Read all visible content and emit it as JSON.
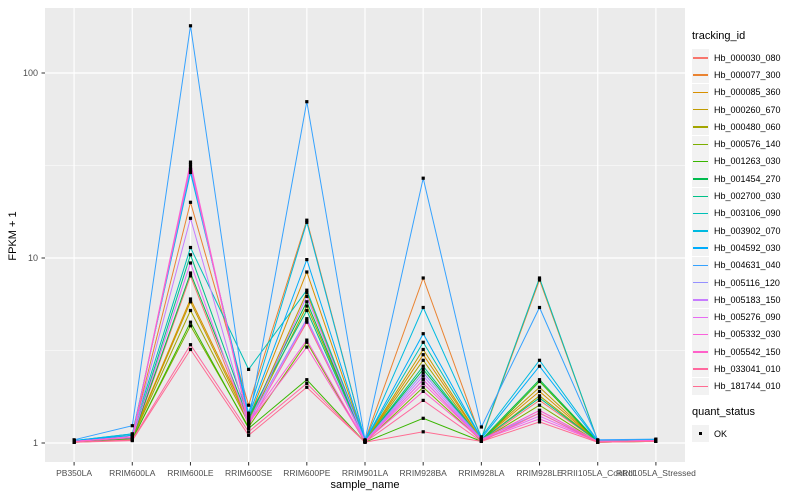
{
  "figure": {
    "background": "#FFFFFF",
    "panel_background": "#EBEBEB",
    "gridline_color": "#FFFFFF",
    "tick_color": "#333333",
    "tick_label_color": "#4D4D4D",
    "point_color": "#000000"
  },
  "chart_data": {
    "type": "line",
    "title": "",
    "xlabel": "sample_name",
    "ylabel": "FPKM + 1",
    "y_scale": "log10",
    "y_ticks": [
      1,
      10,
      100
    ],
    "ylim": [
      1,
      224
    ],
    "grid": true,
    "legend_position": "right",
    "point_shape": "filled-square",
    "categories": [
      "PB350LA",
      "RRIM600LA",
      "RRIM600LE",
      "RRIM600SE",
      "RRIM600PE",
      "RRIM901LA",
      "RRIM928BA",
      "RRIM928LA",
      "RRIM928LE",
      "RRII105LA_Control",
      "RRII105LA_Stressed"
    ],
    "series": [
      {
        "name": "Hb_000030_080",
        "color": "#F8766D",
        "values": [
          1.02,
          1.05,
          8.0,
          1.25,
          4.5,
          1.02,
          2.2,
          1.03,
          1.7,
          1.02,
          1.03
        ]
      },
      {
        "name": "Hb_000077_300",
        "color": "#EA8331",
        "values": [
          1.03,
          1.1,
          20,
          1.6,
          16,
          1.03,
          7.8,
          1.05,
          7.6,
          1.03,
          1.04
        ]
      },
      {
        "name": "Hb_000085_360",
        "color": "#D89000",
        "values": [
          1.02,
          1.08,
          6.0,
          1.35,
          8.4,
          1.02,
          3.0,
          1.04,
          1.9,
          1.02,
          1.03
        ]
      },
      {
        "name": "Hb_000260_670",
        "color": "#C09B00",
        "values": [
          1.02,
          1.07,
          5.8,
          1.3,
          6.5,
          1.02,
          3.2,
          1.04,
          2.0,
          1.02,
          1.02
        ]
      },
      {
        "name": "Hb_000480_060",
        "color": "#A3A500",
        "values": [
          1.01,
          1.06,
          5.2,
          1.28,
          5.5,
          1.02,
          2.8,
          1.03,
          1.8,
          1.02,
          1.02
        ]
      },
      {
        "name": "Hb_000576_140",
        "color": "#7CAE00",
        "values": [
          1.01,
          1.05,
          4.3,
          1.22,
          3.5,
          1.01,
          2.0,
          1.03,
          1.6,
          1.01,
          1.02
        ]
      },
      {
        "name": "Hb_001263_030",
        "color": "#39B600",
        "values": [
          1.01,
          1.04,
          4.5,
          1.2,
          2.2,
          1.01,
          1.36,
          1.02,
          2.15,
          1.01,
          1.02
        ]
      },
      {
        "name": "Hb_001454_270",
        "color": "#00BB4E",
        "values": [
          1.02,
          1.06,
          8.3,
          1.35,
          5.8,
          1.02,
          2.5,
          1.04,
          2.2,
          1.02,
          1.03
        ]
      },
      {
        "name": "Hb_002700_030",
        "color": "#00C087",
        "values": [
          1.02,
          1.07,
          10.4,
          1.4,
          5.2,
          1.02,
          2.6,
          1.04,
          1.75,
          1.02,
          1.03
        ]
      },
      {
        "name": "Hb_003106_090",
        "color": "#00C0B8",
        "values": [
          1.03,
          1.12,
          11.4,
          2.5,
          6.7,
          1.03,
          3.5,
          1.06,
          7.8,
          1.03,
          1.04
        ]
      },
      {
        "name": "Hb_003902_070",
        "color": "#00BAE0",
        "values": [
          1.03,
          1.12,
          29,
          1.45,
          15.6,
          1.03,
          5.4,
          1.08,
          2.8,
          1.03,
          1.04
        ]
      },
      {
        "name": "Hb_004592_030",
        "color": "#00ACFC",
        "values": [
          1.03,
          1.1,
          30,
          1.4,
          9.8,
          1.03,
          3.9,
          1.06,
          2.6,
          1.02,
          1.03
        ]
      },
      {
        "name": "Hb_004631_040",
        "color": "#35A2FF",
        "values": [
          1.04,
          1.24,
          180,
          1.3,
          70,
          1.04,
          27,
          1.22,
          5.4,
          1.04,
          1.05
        ]
      },
      {
        "name": "Hb_005116_120",
        "color": "#9590FF",
        "values": [
          1.02,
          1.08,
          31,
          1.3,
          4.7,
          1.02,
          2.4,
          1.05,
          1.45,
          1.02,
          1.03
        ]
      },
      {
        "name": "Hb_005183_150",
        "color": "#C77CFF",
        "values": [
          1.02,
          1.08,
          16.4,
          1.28,
          6.2,
          1.02,
          2.3,
          1.04,
          1.5,
          1.02,
          1.03
        ]
      },
      {
        "name": "Hb_005276_090",
        "color": "#E76BF3",
        "values": [
          1.02,
          1.07,
          9.4,
          1.25,
          4.6,
          1.02,
          2.2,
          1.04,
          1.4,
          1.02,
          1.03
        ]
      },
      {
        "name": "Hb_005332_030",
        "color": "#FA62DB",
        "values": [
          1.02,
          1.08,
          33,
          1.3,
          3.6,
          1.02,
          2.1,
          1.04,
          1.35,
          1.02,
          1.03
        ]
      },
      {
        "name": "Hb_005542_150",
        "color": "#FF61C9",
        "values": [
          1.02,
          1.07,
          32,
          1.28,
          3.3,
          1.02,
          1.9,
          1.04,
          1.5,
          1.02,
          1.03
        ]
      },
      {
        "name": "Hb_033041_010",
        "color": "#FF689E",
        "values": [
          1.01,
          1.04,
          3.4,
          1.15,
          2.1,
          1.01,
          1.7,
          1.02,
          1.45,
          1.01,
          1.02
        ]
      },
      {
        "name": "Hb_181744_010",
        "color": "#FF6C92",
        "values": [
          1.01,
          1.03,
          3.2,
          1.1,
          2.0,
          1.01,
          1.15,
          1.02,
          1.3,
          1.01,
          1.02
        ]
      }
    ],
    "legend": {
      "tracking_title": "tracking_id",
      "quant_title": "quant_status",
      "quant_value": "OK"
    }
  }
}
